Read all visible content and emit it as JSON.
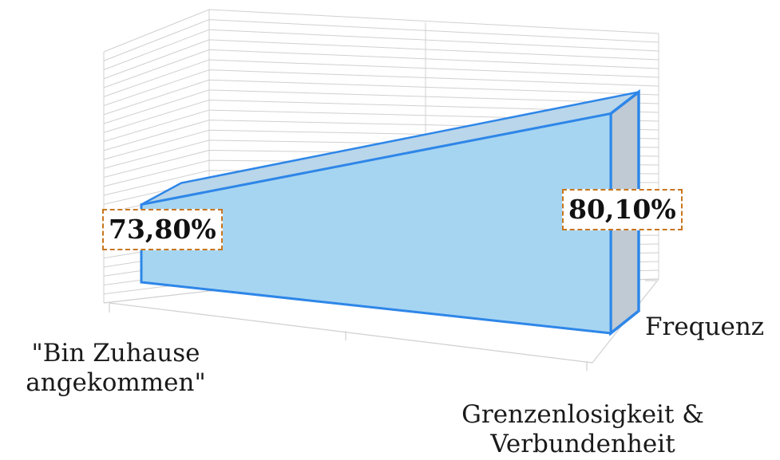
{
  "chart_data": {
    "type": "area",
    "style": "3d",
    "categories": [
      "\"Bin Zuhause\nangekommen\"",
      "Grenzenlosigkeit &\nVerbundenheit"
    ],
    "series": [
      {
        "name": "Frequenz",
        "values": [
          73.8,
          80.1
        ]
      }
    ],
    "data_labels": [
      "73,80%",
      "80,10%"
    ],
    "ylim": [
      0,
      100
    ],
    "grid": true,
    "colors": {
      "fill": "#a6d5f2",
      "edge": "#2e86e8",
      "side": "#bfcad4",
      "label_border": "#c8761e",
      "grid": "#d0d0d0"
    }
  }
}
